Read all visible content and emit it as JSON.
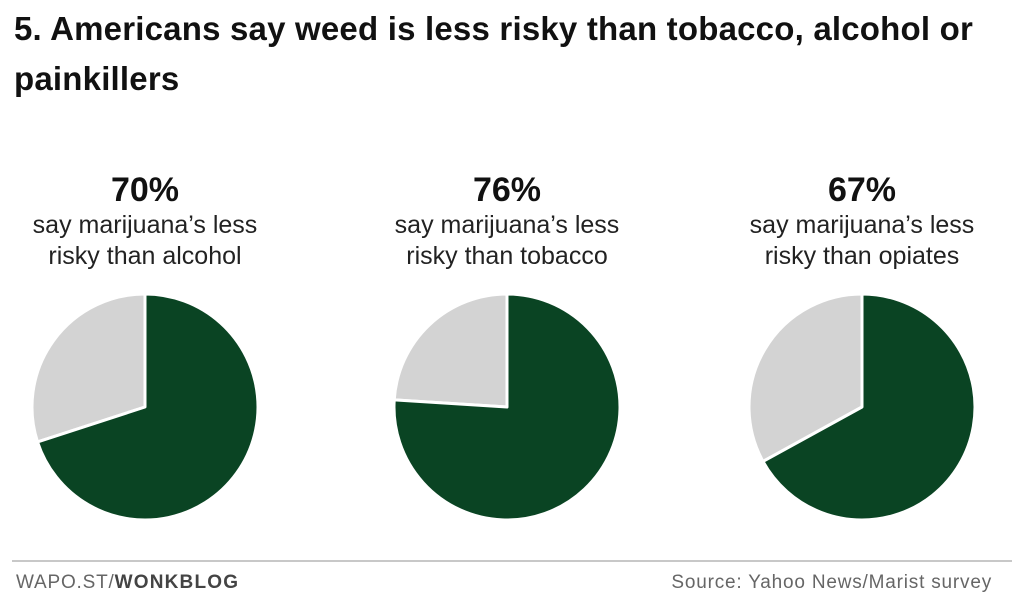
{
  "chart_data": {
    "type": "pie",
    "title": "5. Americans say weed is less risky than tobacco, alcohol or painkillers",
    "colors": {
      "highlight": "#0a4423",
      "remainder": "#d3d3d3",
      "separator": "#ffffff"
    },
    "pies": [
      {
        "percent": 70,
        "label": "70%",
        "description": "say marijuana’s less risky than alcohol"
      },
      {
        "percent": 76,
        "label": "76%",
        "description": "say marijuana’s less risky than tobacco"
      },
      {
        "percent": 67,
        "label": "67%",
        "description": "say marijuana’s less risky than opiates"
      }
    ]
  },
  "footer": {
    "site": "WAPO.ST/",
    "brand": "WONKBLOG",
    "source": "Source: Yahoo News/Marist survey"
  }
}
